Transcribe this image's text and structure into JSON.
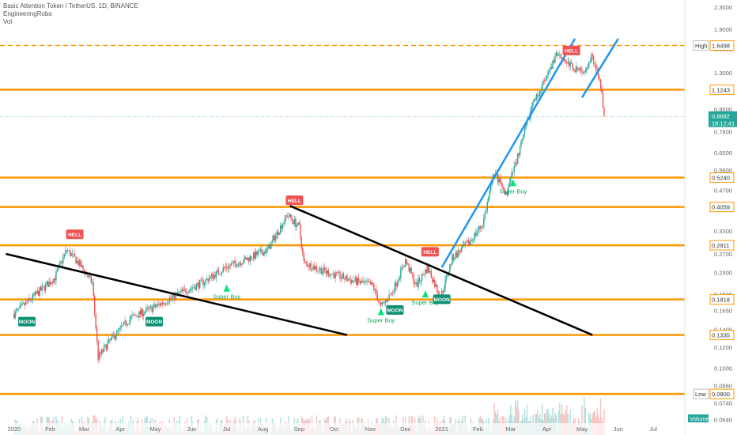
{
  "header": {
    "title": "Basic Attention Token / TetherUS, 1D, BINANCE",
    "indicator": "EngineeringRobo",
    "volume": "Vol"
  },
  "chart_data": {
    "type": "candlestick",
    "scale": "log",
    "ylim": [
      0.056,
      2.45
    ],
    "price_ticks": [
      "2.3000",
      "1.9000",
      "1.6000",
      "1.3000",
      "1.1000",
      "0.9500",
      "0.7800",
      "0.6500",
      "0.5600",
      "0.4700",
      "0.4000",
      "0.3300",
      "0.2700",
      "0.2300",
      "0.1900",
      "0.1650",
      "0.1400",
      "0.1200",
      "0.1000",
      "0.0860",
      "0.0740",
      "0.0640"
    ],
    "x_ticks": [
      "2020",
      "Feb",
      "Mar",
      "Apr",
      "May",
      "Jun",
      "Jul",
      "Aug",
      "Sep",
      "Oct",
      "Nov",
      "Dec",
      "2021",
      "Feb",
      "Mar",
      "Apr",
      "May",
      "Jun",
      "Jul"
    ],
    "levels": [
      {
        "value": 1.6498,
        "label": "1.6498",
        "tag": "High",
        "style": "dashed"
      },
      {
        "value": 1.1243,
        "label": "1.1243"
      },
      {
        "value": 0.524,
        "label": "0.5240"
      },
      {
        "value": 0.4059,
        "label": "0.4059"
      },
      {
        "value": 0.2911,
        "label": "0.2911"
      },
      {
        "value": 0.1818,
        "label": "0.1818"
      },
      {
        "value": 0.1335,
        "label": "0.1335"
      },
      {
        "value": 0.08,
        "label": "0.0800",
        "tag": "Low"
      }
    ],
    "current_price": {
      "value": 0.8882,
      "label": "0.8882",
      "countdown": "18:12:41"
    },
    "price_path": [
      [
        "2020-01-01",
        0.16
      ],
      [
        "2020-01-20",
        0.19
      ],
      [
        "2020-02-05",
        0.22
      ],
      [
        "2020-02-15",
        0.28
      ],
      [
        "2020-02-25",
        0.25
      ],
      [
        "2020-03-08",
        0.21
      ],
      [
        "2020-03-13",
        0.11
      ],
      [
        "2020-03-25",
        0.13
      ],
      [
        "2020-04-10",
        0.155
      ],
      [
        "2020-04-30",
        0.17
      ],
      [
        "2020-05-20",
        0.19
      ],
      [
        "2020-06-10",
        0.21
      ],
      [
        "2020-06-30",
        0.24
      ],
      [
        "2020-07-20",
        0.26
      ],
      [
        "2020-08-05",
        0.28
      ],
      [
        "2020-08-22",
        0.38
      ],
      [
        "2020-09-01",
        0.34
      ],
      [
        "2020-09-05",
        0.25
      ],
      [
        "2020-09-25",
        0.23
      ],
      [
        "2020-10-15",
        0.215
      ],
      [
        "2020-11-03",
        0.205
      ],
      [
        "2020-11-10",
        0.17
      ],
      [
        "2020-11-20",
        0.195
      ],
      [
        "2020-12-01",
        0.255
      ],
      [
        "2020-12-10",
        0.205
      ],
      [
        "2020-12-20",
        0.24
      ],
      [
        "2020-12-31",
        0.185
      ],
      [
        "2021-01-10",
        0.26
      ],
      [
        "2021-01-25",
        0.3
      ],
      [
        "2021-02-05",
        0.35
      ],
      [
        "2021-02-15",
        0.55
      ],
      [
        "2021-02-25",
        0.45
      ],
      [
        "2021-03-10",
        0.7
      ],
      [
        "2021-03-20",
        1.0
      ],
      [
        "2021-04-01",
        1.25
      ],
      [
        "2021-04-10",
        1.55
      ],
      [
        "2021-04-20",
        1.4
      ],
      [
        "2021-05-01",
        1.3
      ],
      [
        "2021-05-10",
        1.52
      ],
      [
        "2021-05-18",
        1.1
      ],
      [
        "2021-05-20",
        0.88
      ]
    ],
    "trendlines": [
      {
        "color": "black",
        "from": [
          "2019-12-25",
          0.27
        ],
        "to": [
          "2020-10-12",
          0.1335
        ]
      },
      {
        "color": "black",
        "from": [
          "2020-08-24",
          0.41
        ],
        "to": [
          "2021-05-10",
          0.1335
        ]
      },
      {
        "color": "blue",
        "from": [
          "2021-01-01",
          0.24
        ],
        "to": [
          "2021-04-25",
          1.75
        ]
      },
      {
        "color": "blue",
        "from": [
          "2021-05-01",
          1.05
        ],
        "to": [
          "2021-06-01",
          1.75
        ]
      }
    ],
    "signals": [
      {
        "type": "label",
        "text": "MOON",
        "color": "#0d8f74",
        "date": "2020-01-12",
        "price": 0.15
      },
      {
        "type": "label",
        "text": "HELL",
        "color": "#f25151",
        "date": "2020-02-22",
        "price": 0.32
      },
      {
        "type": "label",
        "text": "MOON",
        "color": "#0d8f74",
        "date": "2020-04-30",
        "price": 0.15
      },
      {
        "type": "label",
        "text": "HELL",
        "color": "#f25151",
        "date": "2020-08-28",
        "price": 0.43
      },
      {
        "type": "label",
        "text": "MOON",
        "color": "#0d8f74",
        "date": "2020-11-22",
        "price": 0.166
      },
      {
        "type": "label",
        "text": "HELL",
        "color": "#f25151",
        "date": "2020-12-22",
        "price": 0.275
      },
      {
        "type": "label",
        "text": "MOON",
        "color": "#0d8f74",
        "date": "2021-01-01",
        "price": 0.182
      },
      {
        "type": "label",
        "text": "HELL",
        "color": "#f25151",
        "date": "2021-04-22",
        "price": 1.58
      },
      {
        "type": "super",
        "text": "Super Buy",
        "date": "2020-07-01",
        "price": 0.2
      },
      {
        "type": "super",
        "text": "Super Buy",
        "date": "2020-11-10",
        "price": 0.163
      },
      {
        "type": "super",
        "text": "Super Buy",
        "date": "2020-12-18",
        "price": 0.19
      },
      {
        "type": "super",
        "text": "Super Buy",
        "date": "2021-03-03",
        "price": 0.5
      }
    ],
    "volume_label": "Volume",
    "grid": false
  },
  "colors": {
    "level": "#ff9800",
    "up": "#26a69a",
    "down": "#ef5350",
    "blue": "#2196f3",
    "moon": "#0d8f74",
    "hell": "#f25151",
    "super": "#00e676"
  }
}
